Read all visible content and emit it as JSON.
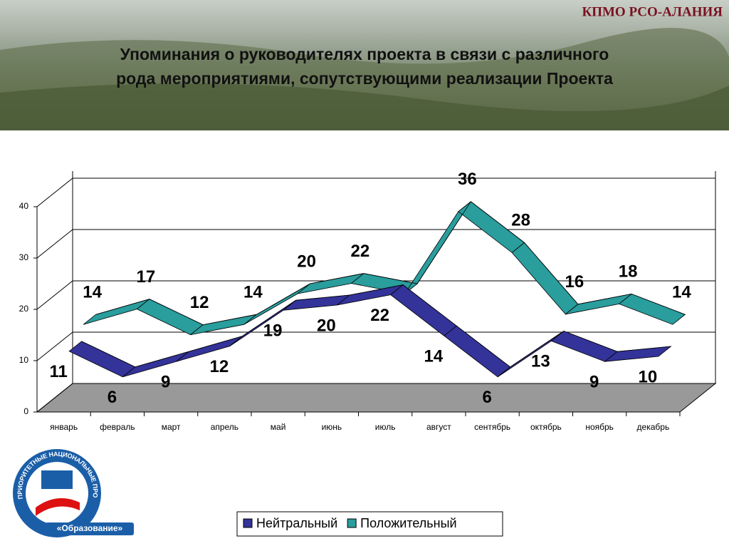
{
  "header": {
    "org": "КПМО РСО-АЛАНИЯ",
    "logo_top": "ПРИОРИТЕТНЫЕ НАЦИОНАЛЬНЫЕ ПРОЕКТЫ",
    "logo_bottom": "«Образование»"
  },
  "chart_data": {
    "type": "line3d",
    "title": [
      "Упоминания о руководителях проекта в связи с различного",
      "рода мероприятиями, сопутствующими реализации Проекта"
    ],
    "categories": [
      "январь",
      "февраль",
      "март",
      "апрель",
      "май",
      "июнь",
      "июль",
      "август",
      "сентябрь",
      "октябрь",
      "ноябрь",
      "декабрь"
    ],
    "series": [
      {
        "name": "Нейтральный",
        "color": "#333399",
        "values": [
          11,
          6,
          9,
          12,
          19,
          20,
          22,
          14,
          6,
          13,
          9,
          10
        ]
      },
      {
        "name": "Положительный",
        "color": "#2a9d9d",
        "values": [
          14,
          17,
          12,
          14,
          20,
          22,
          20,
          36,
          28,
          16,
          18,
          14
        ],
        "value_labels": [
          "14",
          "17",
          "12",
          "14",
          "20",
          "22",
          null,
          "36",
          "28",
          "16",
          "18",
          "14"
        ]
      }
    ],
    "ylim": [
      0,
      40
    ],
    "yticks": [
      0,
      10,
      20,
      30,
      40
    ],
    "grid": true,
    "legend": "bottom"
  }
}
